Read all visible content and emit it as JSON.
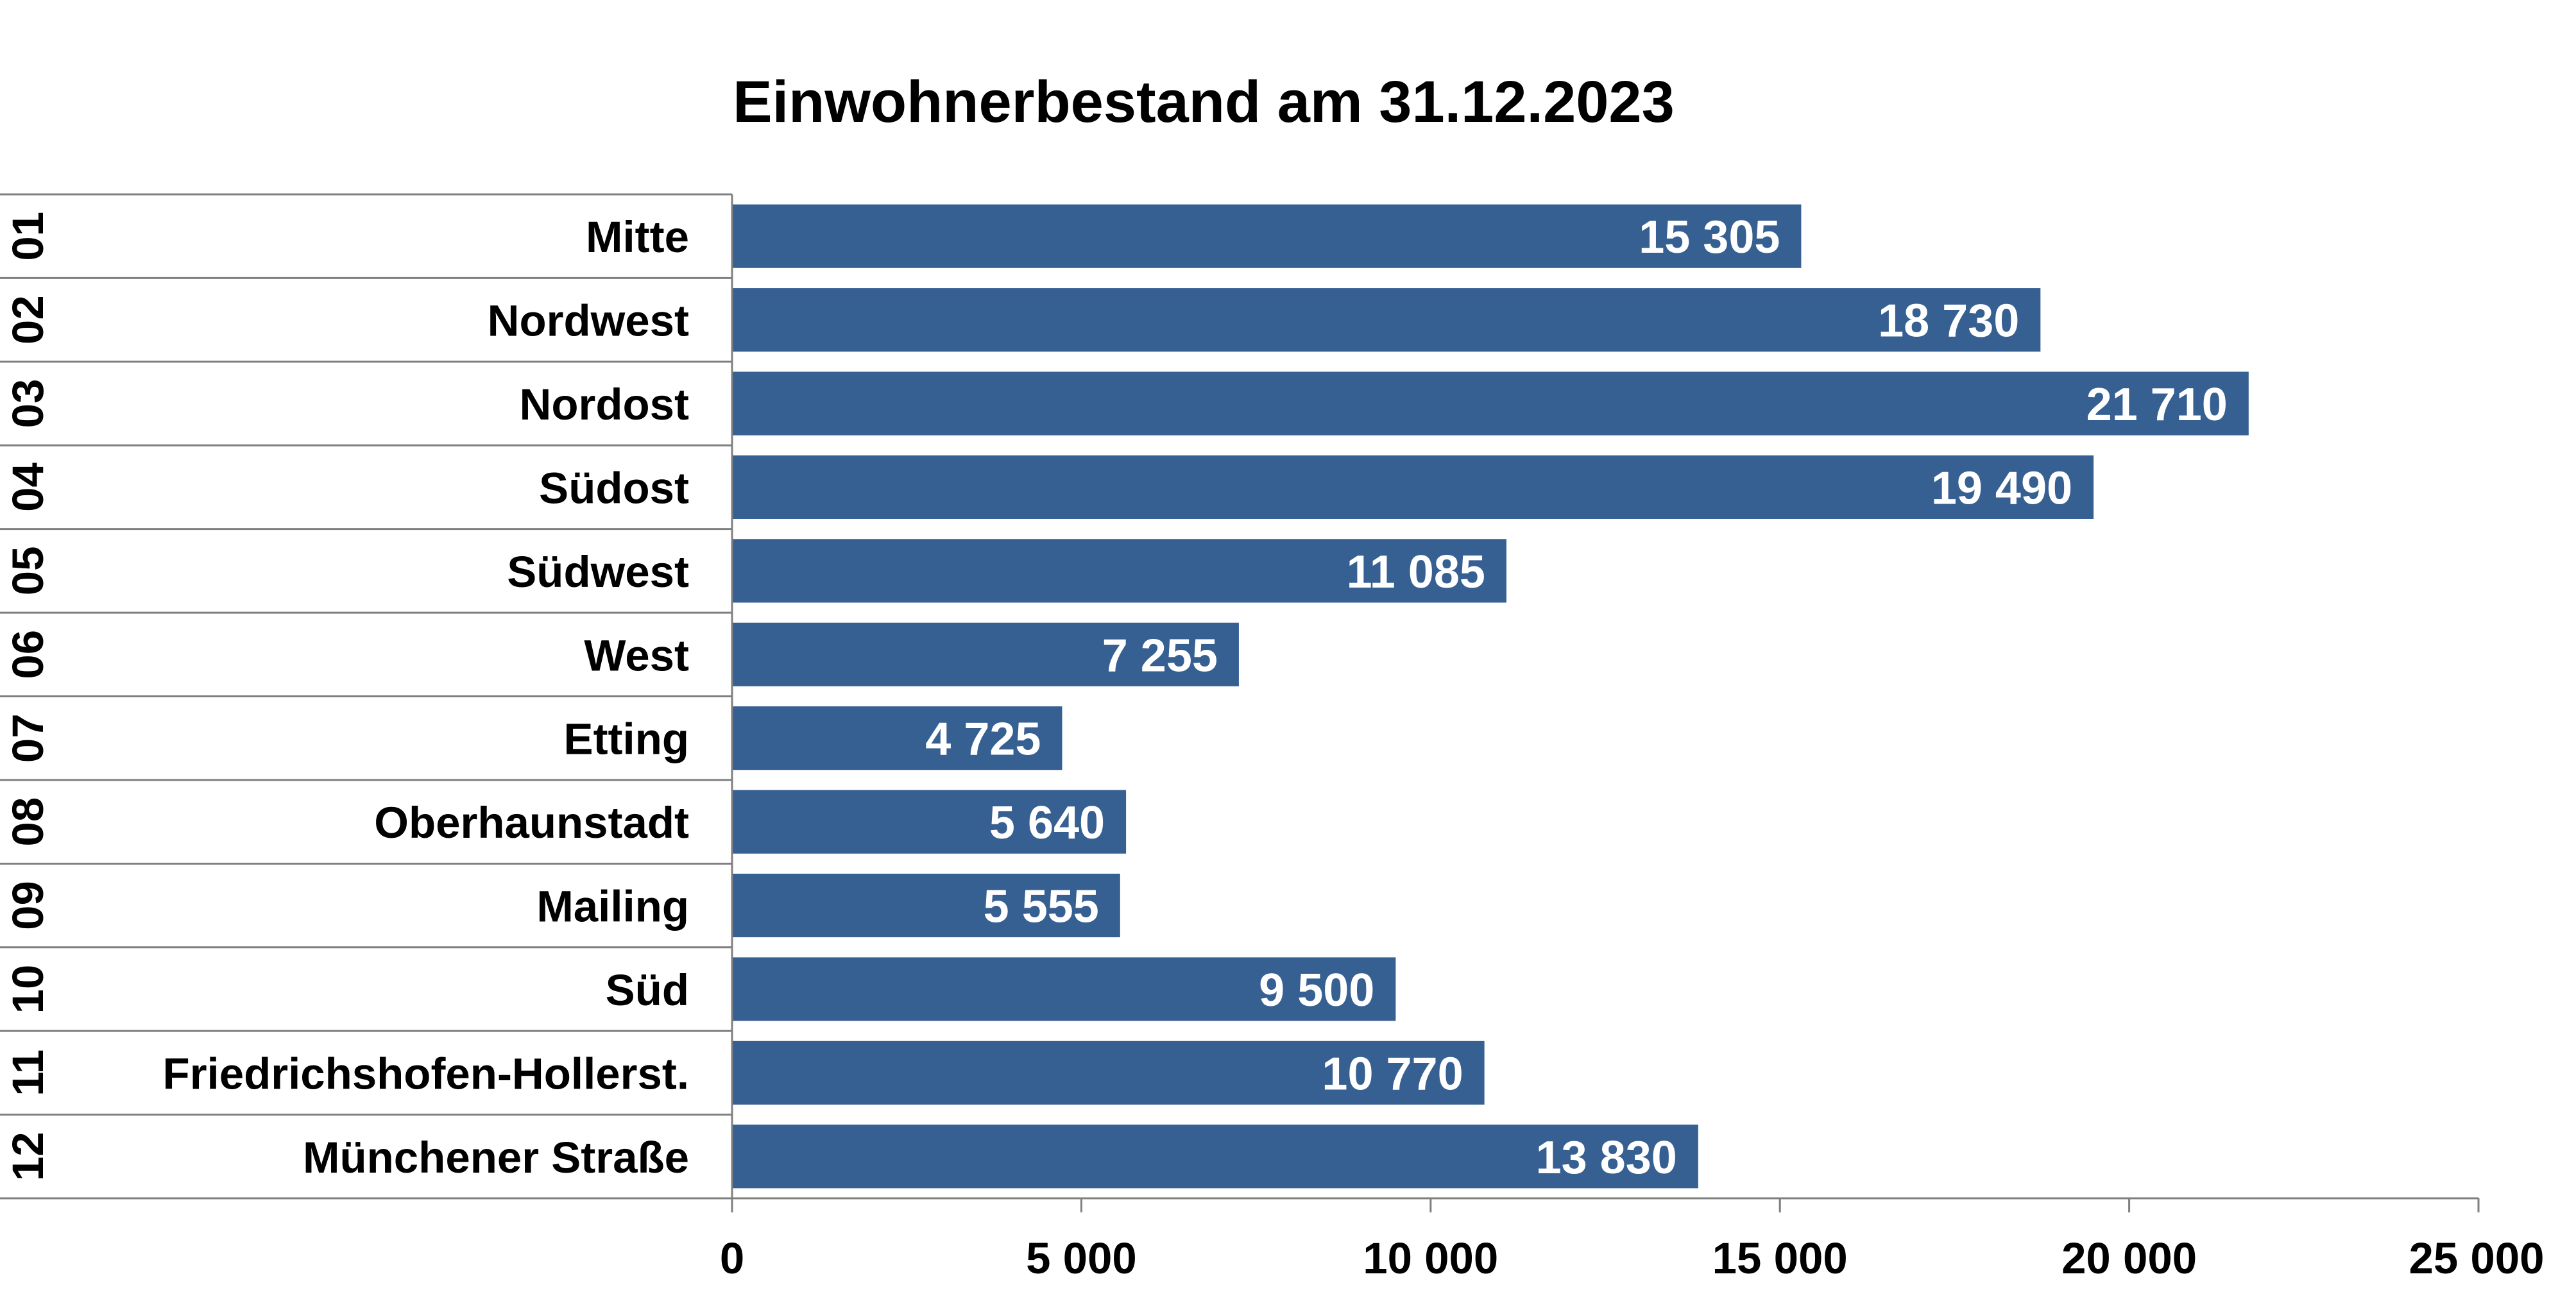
{
  "colors": {
    "bar": "#376092",
    "grid": "#7f7f7f",
    "data_label": "#ffffff",
    "text": "#000000"
  },
  "chart_data": {
    "type": "bar",
    "orientation": "horizontal",
    "title": "Einwohnerbestand am 31.12.2023",
    "codes": [
      "01",
      "02",
      "03",
      "04",
      "05",
      "06",
      "07",
      "08",
      "09",
      "10",
      "11",
      "12"
    ],
    "categories": [
      "Mitte",
      "Nordwest",
      "Nordost",
      "Südost",
      "Südwest",
      "West",
      "Etting",
      "Oberhaunstadt",
      "Mailing",
      "Süd",
      "Friedrichshofen-Hollerst.",
      "Münchener Straße"
    ],
    "values": [
      15305,
      18730,
      21710,
      19490,
      11085,
      7255,
      4725,
      5640,
      5555,
      9500,
      10770,
      13830
    ],
    "data_labels": [
      "15 305",
      "18 730",
      "21 710",
      "19 490",
      "11 085",
      "7 255",
      "4 725",
      "5 640",
      "5 555",
      "9 500",
      "10 770",
      "13 830"
    ],
    "xlim": [
      0,
      25000
    ],
    "ticks": [
      0,
      5000,
      10000,
      15000,
      20000,
      25000
    ],
    "tick_labels": [
      "0",
      "5 000",
      "10 000",
      "15 000",
      "20 000",
      "25 000"
    ],
    "xlabel": "",
    "ylabel": "",
    "grid": false,
    "legend": "none"
  }
}
